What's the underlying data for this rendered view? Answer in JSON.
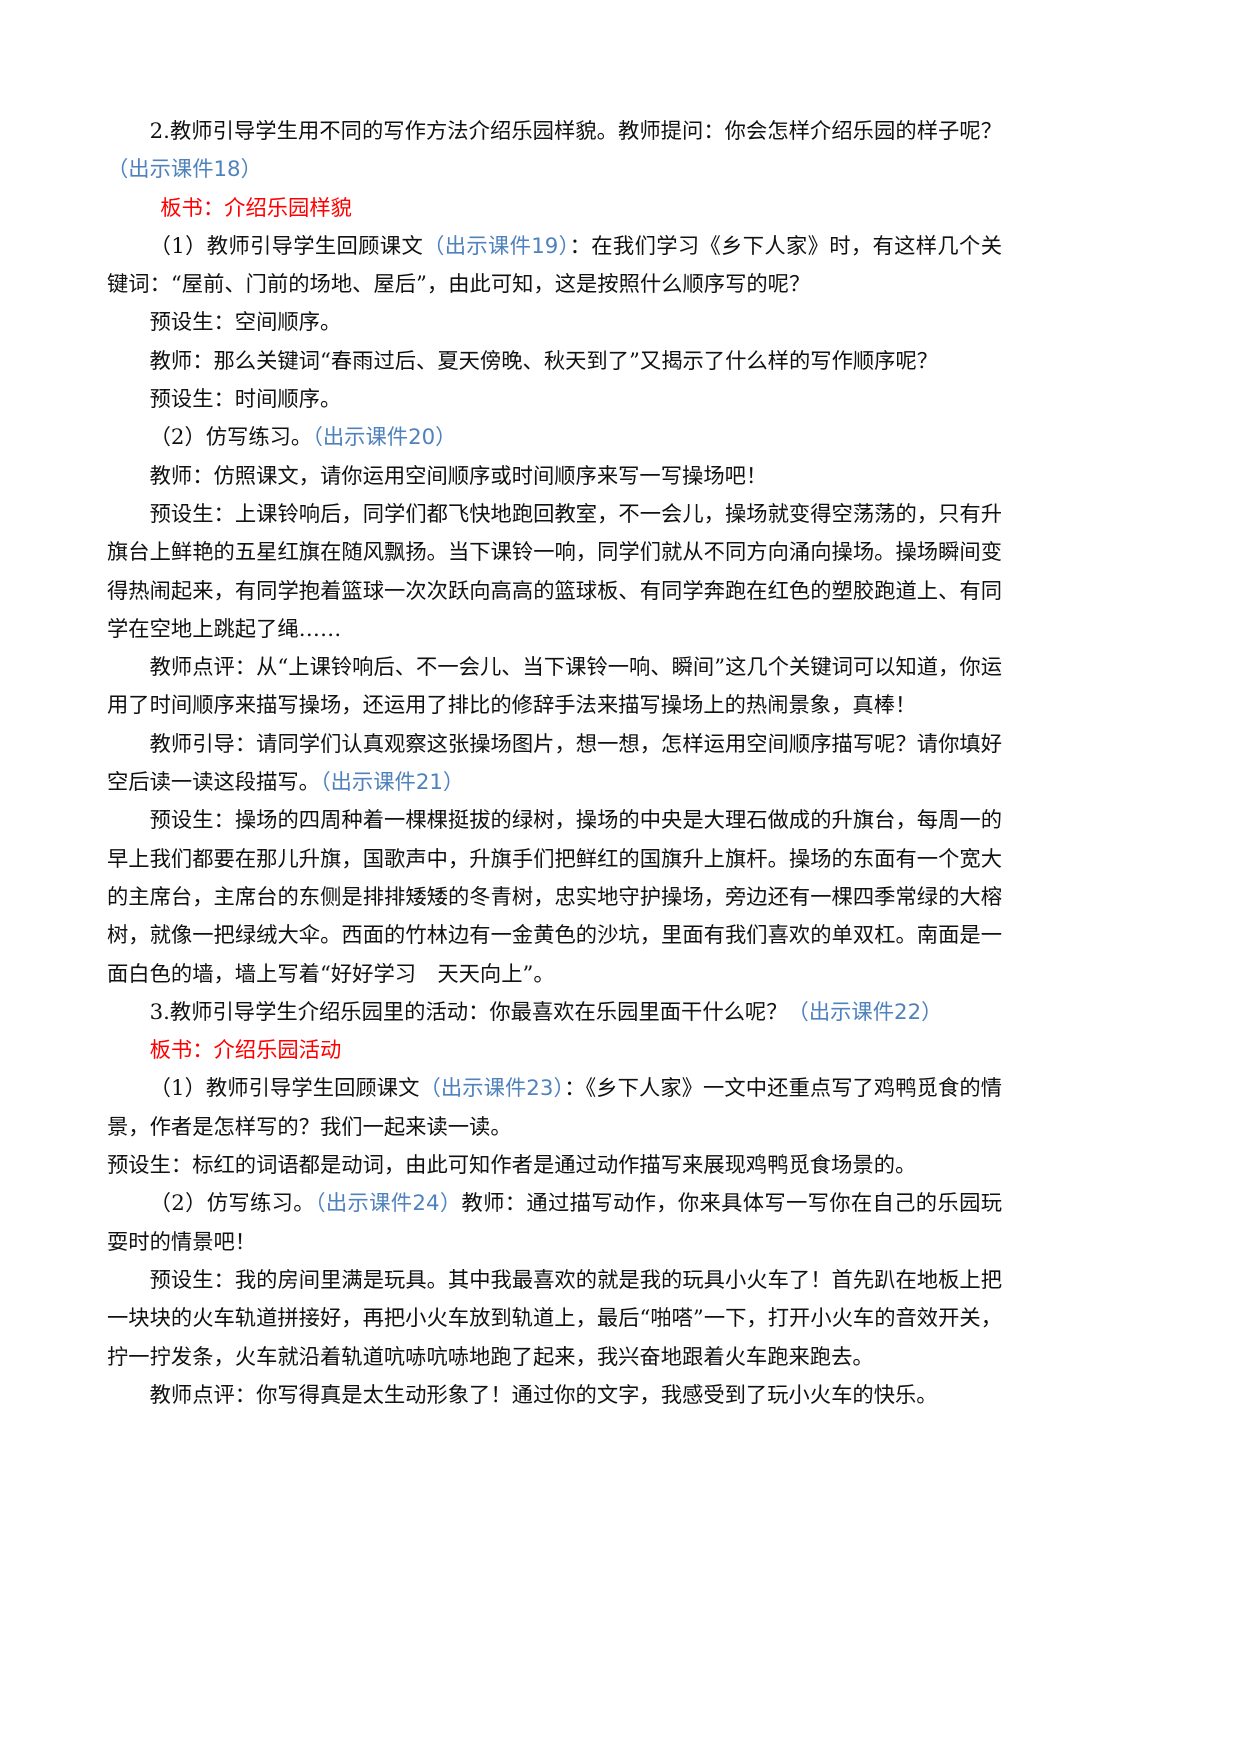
{
  "paragraphs": [
    {
      "indent": "2",
      "segments": [
        {
          "t": "2.教师引导学生用不同的写作方法介绍乐园样貌。教师提问：你会怎样介绍乐园的样子呢？",
          "c": "black"
        },
        {
          "t": "（出示课件18）",
          "c": "blue"
        }
      ]
    },
    {
      "indent": "2.5",
      "segments": [
        {
          "t": "板书：介绍乐园样貌",
          "c": "red"
        }
      ]
    },
    {
      "indent": "2",
      "segments": [
        {
          "t": "（1）教师引导学生回顾课文",
          "c": "black"
        },
        {
          "t": "（出示课件19）",
          "c": "blue"
        },
        {
          "t": "：在我们学习《乡下人家》时，有这样几个关键词：“屋前、门前的场地、屋后”，由此可知，这是按照什么顺序写的呢？",
          "c": "black"
        }
      ]
    },
    {
      "indent": "2",
      "segments": [
        {
          "t": "预设生：空间顺序。",
          "c": "black"
        }
      ]
    },
    {
      "indent": "2",
      "segments": [
        {
          "t": "教师：那么关键词“春雨过后、夏天傍晚、秋天到了”又揭示了什么样的写作顺序呢？",
          "c": "black"
        }
      ]
    },
    {
      "indent": "2",
      "segments": [
        {
          "t": "预设生：时间顺序。",
          "c": "black"
        }
      ]
    },
    {
      "indent": "2",
      "segments": [
        {
          "t": "（2）仿写练习。",
          "c": "black"
        },
        {
          "t": "（出示课件20）",
          "c": "blue"
        }
      ]
    },
    {
      "indent": "2",
      "segments": [
        {
          "t": "教师：仿照课文，请你运用空间顺序或时间顺序来写一写操场吧！",
          "c": "black"
        }
      ]
    },
    {
      "indent": "2",
      "segments": [
        {
          "t": "预设生：上课铃响后，同学们都飞快地跑回教室，不一会儿，操场就变得空荡荡的，只有升旗台上鲜艳的五星红旗在随风飘扬。当下课铃一响，同学们就从不同方向涌向操场。操场瞬间变得热闹起来，有同学抱着篮球一次次跃向高高的篮球板、有同学奔跑在红色的塑胶跑道上、有同学在空地上跳起了绳……",
          "c": "black"
        }
      ]
    },
    {
      "indent": "2",
      "segments": [
        {
          "t": "教师点评：从“上课铃响后、不一会儿、当下课铃一响、瞬间”这几个关键词可以知道，你运用了时间顺序来描写操场，还运用了排比的修辞手法来描写操场上的热闹景象，真棒！",
          "c": "black"
        }
      ]
    },
    {
      "indent": "2",
      "segments": [
        {
          "t": "教师引导：请同学们认真观察这张操场图片，想一想，怎样运用空间顺序描写呢？请你填好空后读一读这段描写。",
          "c": "black"
        },
        {
          "t": "（出示课件21）",
          "c": "blue"
        }
      ]
    },
    {
      "indent": "2",
      "segments": [
        {
          "t": "预设生：操场的四周种着一棵棵挺拔的绿树，操场的中央是大理石做成的升旗台，每周一的早上我们都要在那儿升旗，国歌声中，升旗手们把鲜红的国旗升上旗杆。操场的东面有一个宽大的主席台，主席台的东侧是排排矮矮的冬青树，忠实地守护操场，旁边还有一棵四季常绿的大榕树，就像一把绿绒大伞。西面的竹林边有一金黄色的沙坑，里面有我们喜欢的单双杠。南面是一面白色的墙，墙上写着“好好学习　天天向上”。",
          "c": "black"
        }
      ]
    },
    {
      "indent": "2",
      "segments": [
        {
          "t": "3.教师引导学生介绍乐园里的活动：你最喜欢在乐园里面干什么呢？",
          "c": "black"
        },
        {
          "t": "（出示课件22）",
          "c": "blue"
        }
      ]
    },
    {
      "indent": "2",
      "segments": [
        {
          "t": "板书：介绍乐园活动",
          "c": "red"
        }
      ]
    },
    {
      "indent": "2",
      "segments": [
        {
          "t": "（1）教师引导学生回顾课文",
          "c": "black"
        },
        {
          "t": "（出示课件23）",
          "c": "blue"
        },
        {
          "t": "：《乡下人家》一文中还重点写了鸡鸭觅食的情景，作者是怎样写的？我们一起来读一读。",
          "c": "black"
        }
      ]
    },
    {
      "indent": "0",
      "segments": [
        {
          "t": "预设生：标红的词语都是动词，由此可知作者是通过动作描写来展现鸡鸭觅食场景的。",
          "c": "black"
        }
      ]
    },
    {
      "indent": "2",
      "segments": [
        {
          "t": "（2）仿写练习。",
          "c": "black"
        },
        {
          "t": "（出示课件24）",
          "c": "blue"
        },
        {
          "t": "教师：通过描写动作，你来具体写一写你在自己的乐园玩耍时的情景吧！",
          "c": "black"
        }
      ]
    },
    {
      "indent": "2",
      "segments": [
        {
          "t": "预设生：我的房间里满是玩具。其中我最喜欢的就是我的玩具小火车了！首先趴在地板上把一块块的火车轨道拼接好，再把小火车放到轨道上，最后“啪嗒”一下，打开小火车的音效开关，拧一拧发条，火车就沿着轨道吭哧吭哧地跑了起来，我兴奋地跟着火车跑来跑去。",
          "c": "black"
        }
      ]
    },
    {
      "indent": "2",
      "segments": [
        {
          "t": "教师点评：你写得真是太生动形象了！通过你的文字，我感受到了玩小火车的快乐。",
          "c": "black"
        }
      ]
    }
  ],
  "colors": {
    "black": "#111111",
    "blue": "#4f81bd",
    "red": "#ff0000"
  }
}
